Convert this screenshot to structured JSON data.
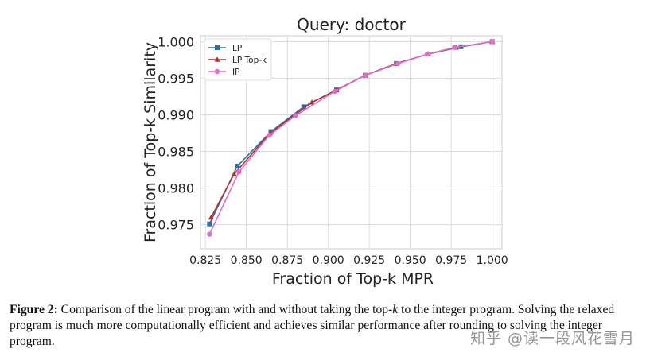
{
  "chart_data": {
    "type": "line",
    "title": "Query: doctor",
    "xlabel": "Fraction of Top-k MPR",
    "ylabel": "Fraction of Top-k Similarity",
    "xlim": [
      0.822,
      1.006
    ],
    "ylim": [
      0.9717,
      1.0008
    ],
    "xticks": [
      0.825,
      0.85,
      0.875,
      0.9,
      0.925,
      0.95,
      0.975,
      1.0
    ],
    "xtick_labels": [
      "0.825",
      "0.850",
      "0.875",
      "0.900",
      "0.925",
      "0.950",
      "0.975",
      "1.000"
    ],
    "yticks": [
      0.975,
      0.98,
      0.985,
      0.99,
      0.995,
      1.0
    ],
    "ytick_labels": [
      "0.975",
      "0.980",
      "0.985",
      "0.990",
      "0.995",
      "1.000"
    ],
    "grid": true,
    "legend_position": "top-left",
    "series": [
      {
        "name": "LP",
        "color": "#2f6fa8",
        "marker": "square",
        "x": [
          0.8275,
          0.8445,
          0.865,
          0.885,
          0.905,
          0.9225,
          0.9415,
          0.961,
          0.981,
          1.0
        ],
        "y": [
          0.9751,
          0.983,
          0.9877,
          0.9911,
          0.9934,
          0.9954,
          0.997,
          0.9983,
          0.9993,
          1.0
        ]
      },
      {
        "name": "LP Top-k",
        "color": "#b03030",
        "marker": "triangle",
        "x": [
          0.8285,
          0.8425,
          0.8645,
          0.89,
          0.905,
          0.9225,
          0.9415,
          0.961,
          0.978,
          1.0
        ],
        "y": [
          0.976,
          0.9819,
          0.9875,
          0.9917,
          0.9934,
          0.9954,
          0.997,
          0.9983,
          0.9992,
          1.0
        ]
      },
      {
        "name": "IP",
        "color": "#df6ec8",
        "marker": "circle",
        "x": [
          0.8275,
          0.8455,
          0.864,
          0.88,
          0.904,
          0.9225,
          0.9425,
          0.9605,
          0.977,
          1.0
        ],
        "y": [
          0.9737,
          0.9822,
          0.9872,
          0.9899,
          0.9932,
          0.9954,
          0.997,
          0.9983,
          0.9992,
          1.0
        ]
      }
    ]
  },
  "caption": {
    "label": "Figure 2:",
    "text_1": " Comparison of the linear program with and without taking the top-",
    "k": "k",
    "text_2": " to the integer program. Solving the relaxed program is much more computationally efficient and achieves similar performance after rounding to solving the integer program."
  },
  "watermark": "知乎 @读一段风花雪月"
}
